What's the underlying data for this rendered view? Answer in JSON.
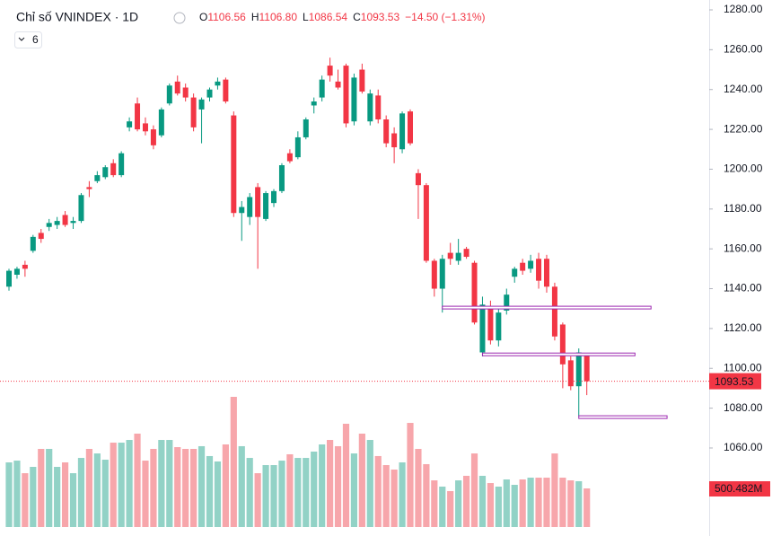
{
  "chart_data": {
    "type": "candlestick",
    "title": "Chỉ số VNINDEX · 1D",
    "legend_labels": {
      "o": "O",
      "o_value": "1106.56",
      "h": "H",
      "h_value": "1106.80",
      "l": "L",
      "l_value": "1086.54",
      "c": "C",
      "c_value": "1093.53",
      "change": "−14.50 (−1.31%)"
    },
    "indicator_count": "6",
    "last_price_label": "1093.53",
    "volume_label": "500.482M",
    "up_color": "#089981",
    "down_color": "#f23645",
    "up_volume_color": "#92d2c6",
    "down_volume_color": "#f7a6ab",
    "level_color": "#9c27b0",
    "ylim": [
      1015.8,
      1284.96
    ],
    "yticks": [
      {
        "value": 1060,
        "label": "1060.00"
      },
      {
        "value": 1080,
        "label": "1080.00"
      },
      {
        "value": 1100,
        "label": "1100.00"
      },
      {
        "value": 1120,
        "label": "1120.00"
      },
      {
        "value": 1140,
        "label": "1140.00"
      },
      {
        "value": 1160,
        "label": "1160.00"
      },
      {
        "value": 1180,
        "label": "1180.00"
      },
      {
        "value": 1200,
        "label": "1200.00"
      },
      {
        "value": 1220,
        "label": "1220.00"
      },
      {
        "value": 1240,
        "label": "1240.00"
      },
      {
        "value": 1260,
        "label": "1260.00"
      },
      {
        "value": 1280,
        "label": "1280.00"
      }
    ],
    "open": [
      1141,
      1147,
      1152,
      1159,
      1168,
      1171,
      1172,
      1177,
      1173,
      1174,
      1191,
      1194,
      1196,
      1203,
      1197,
      1221,
      1233,
      1223,
      1220,
      1217,
      1233,
      1244,
      1241,
      1236,
      1230,
      1236,
      1242,
      1245,
      1227,
      1178,
      1176,
      1191,
      1175,
      1183,
      1189,
      1208,
      1206,
      1216,
      1232,
      1236,
      1252,
      1244,
      1252,
      1224,
      1250,
      1224,
      1237,
      1225,
      1218,
      1210,
      1229,
      1198,
      1192,
      1154,
      1140,
      1158,
      1154,
      1160,
      1153,
      1108,
      1130,
      1114,
      1129,
      1146,
      1153,
      1150,
      1155,
      1155,
      1141,
      1122,
      1104,
      1091,
      1106.56
    ],
    "high": [
      1150,
      1151,
      1154,
      1167,
      1170,
      1175,
      1176,
      1179,
      1176,
      1188,
      1194,
      1199,
      1202,
      1205,
      1209,
      1226,
      1236,
      1226,
      1222,
      1231,
      1243,
      1247,
      1243,
      1238,
      1236,
      1241,
      1246,
      1246,
      1229,
      1184,
      1188,
      1193,
      1189,
      1190,
      1203,
      1210,
      1219,
      1226,
      1236,
      1247,
      1256,
      1250,
      1253,
      1248,
      1253,
      1240,
      1240,
      1227,
      1221,
      1229,
      1230,
      1200,
      1193,
      1155,
      1157,
      1163,
      1165,
      1161,
      1154,
      1136,
      1134,
      1131,
      1140,
      1151,
      1155,
      1157,
      1158,
      1157,
      1143,
      1123,
      1106,
      1110,
      1106.8
    ],
    "low": [
      1139,
      1145,
      1146,
      1158,
      1163,
      1169,
      1170,
      1171,
      1170,
      1173,
      1186,
      1193,
      1195,
      1196,
      1196,
      1219,
      1219,
      1217,
      1210,
      1216,
      1232,
      1237,
      1234,
      1219,
      1213,
      1234,
      1240,
      1233,
      1176,
      1164,
      1172,
      1150,
      1174,
      1181,
      1188,
      1203,
      1205,
      1215,
      1228,
      1234,
      1244,
      1240,
      1221,
      1222,
      1238,
      1222,
      1223,
      1211,
      1203,
      1208,
      1212,
      1175,
      1153,
      1136,
      1128,
      1152,
      1152,
      1155,
      1122,
      1106,
      1112,
      1111,
      1127,
      1143,
      1147,
      1148,
      1140,
      1138,
      1114,
      1090,
      1089,
      1076,
      1086.54
    ],
    "close": [
      1149,
      1150,
      1150,
      1166,
      1165,
      1173,
      1174,
      1172,
      1174,
      1187,
      1190,
      1197,
      1201,
      1197,
      1208,
      1224,
      1220,
      1219,
      1212,
      1230,
      1242,
      1238,
      1236,
      1221,
      1235,
      1240,
      1244,
      1234,
      1178,
      1181,
      1186,
      1176,
      1188,
      1189,
      1202,
      1204,
      1216,
      1225,
      1234,
      1245,
      1247,
      1241,
      1223,
      1246,
      1239,
      1238,
      1225,
      1213,
      1211,
      1228,
      1213,
      1192,
      1154,
      1140,
      1155,
      1155,
      1158,
      1156,
      1123,
      1132,
      1114,
      1128,
      1137,
      1150,
      1149,
      1154,
      1144,
      1141,
      1116,
      1102,
      1091,
      1108,
      1093.53
    ],
    "volume": [
      838,
      861,
      698,
      780,
      1013,
      1013,
      780,
      838,
      698,
      896,
      1013,
      954,
      873,
      1094,
      1094,
      1129,
      1211,
      861,
      1013,
      1129,
      1129,
      1036,
      1013,
      1013,
      1048,
      920,
      850,
      1071,
      1688,
      1048,
      896,
      698,
      803,
      803,
      861,
      943,
      896,
      896,
      978,
      1071,
      1129,
      1048,
      1339,
      954,
      1211,
      1129,
      920,
      803,
      745,
      838,
      1350,
      1013,
      815,
      605,
      524,
      466,
      605,
      664,
      954,
      664,
      570,
      524,
      617,
      547,
      617,
      640,
      640,
      640,
      954,
      640,
      605,
      594,
      500.482
    ],
    "levels": [
      {
        "value": 1130.5,
        "from": 54,
        "to": 80
      },
      {
        "value": 1107,
        "from": 59,
        "to": 78
      },
      {
        "value": 1075.5,
        "from": 71,
        "to": 82
      }
    ]
  }
}
